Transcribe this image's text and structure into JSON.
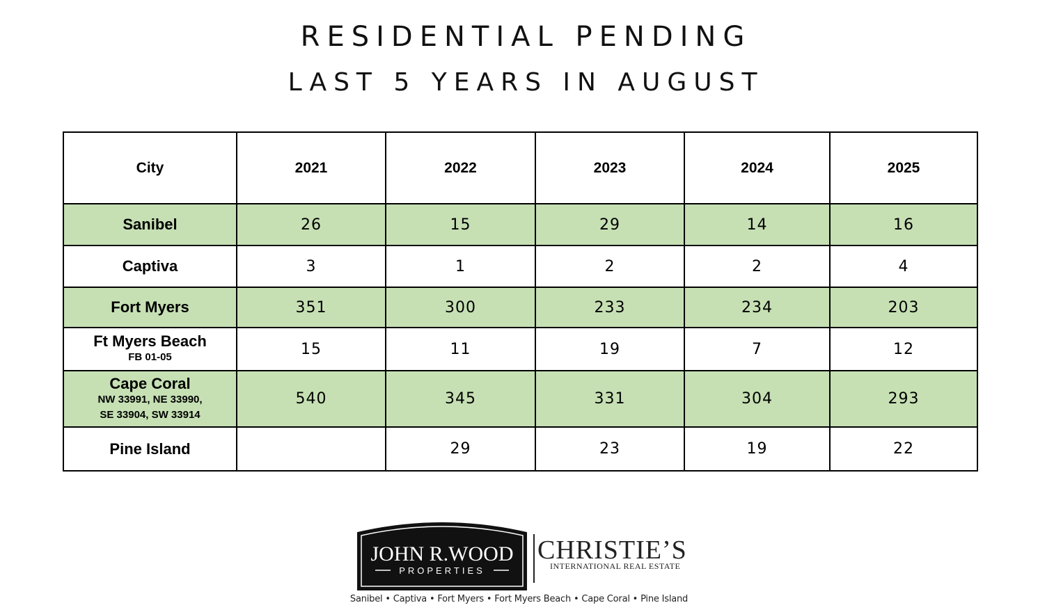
{
  "title": {
    "line1": "RESIDENTIAL PENDING",
    "line2": "LAST 5 YEARS IN AUGUST"
  },
  "table": {
    "headers": [
      "City",
      "2021",
      "2022",
      "2023",
      "2024",
      "2025"
    ],
    "rows": [
      {
        "city": "Sanibel",
        "sub": "",
        "values": [
          "26",
          "15",
          "29",
          "14",
          "16"
        ]
      },
      {
        "city": "Captiva",
        "sub": "",
        "values": [
          "3",
          "1",
          "2",
          "2",
          "4"
        ]
      },
      {
        "city": "Fort Myers",
        "sub": "",
        "values": [
          "351",
          "300",
          "233",
          "234",
          "203"
        ]
      },
      {
        "city": "Ft Myers Beach",
        "sub": "FB 01-05",
        "values": [
          "15",
          "11",
          "19",
          "7",
          "12"
        ]
      },
      {
        "city": "Cape Coral",
        "sub": "NW 33991, NE 33990,",
        "sub2": "SE 33904, SW 33914",
        "values": [
          "540",
          "345",
          "331",
          "304",
          "293"
        ]
      },
      {
        "city": "Pine Island",
        "sub": "",
        "values": [
          "",
          "29",
          "23",
          "19",
          "22"
        ]
      }
    ],
    "row_colors": [
      "#c6e0b4",
      "#ffffff"
    ]
  },
  "branding": {
    "logo_line1": "JOHN R.WOOD",
    "logo_line2": "PROPERTIES",
    "partner": "CHRISTIE’S",
    "partner_sub": "INTERNATIONAL REAL ESTATE",
    "tagline": "Sanibel • Captiva • Fort Myers • Fort Myers Beach • Cape Coral • Pine Island"
  }
}
